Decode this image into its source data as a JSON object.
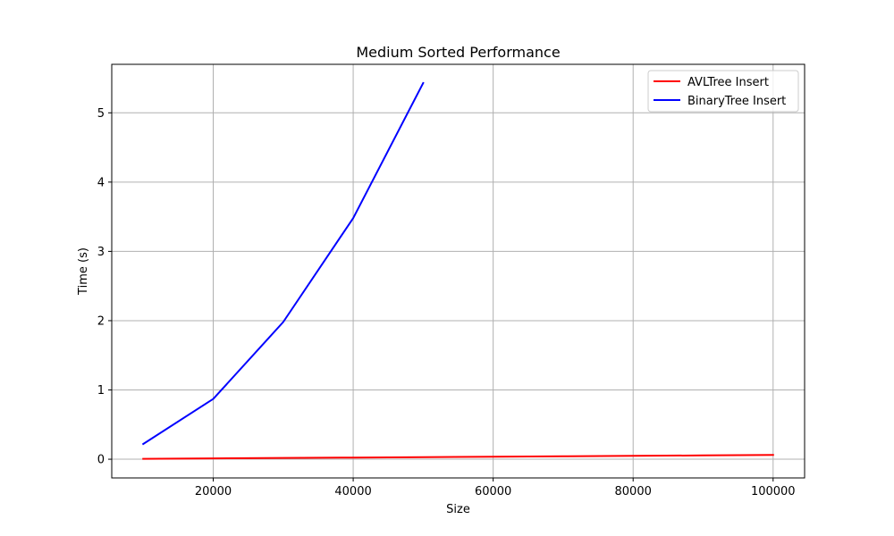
{
  "chart_data": {
    "type": "line",
    "title": "Medium Sorted Performance",
    "xlabel": "Size",
    "ylabel": "Time (s)",
    "xlim": [
      5500,
      104500
    ],
    "ylim": [
      -0.27,
      5.7
    ],
    "xticks": [
      20000,
      40000,
      60000,
      80000,
      100000
    ],
    "yticks": [
      0,
      1,
      2,
      3,
      4,
      5
    ],
    "grid": true,
    "legend_position": "top-right",
    "series": [
      {
        "name": "AVLTree Insert",
        "color": "#ff0000",
        "x": [
          10000,
          20000,
          30000,
          40000,
          50000,
          60000,
          70000,
          80000,
          90000,
          100000
        ],
        "y": [
          0.006,
          0.012,
          0.018,
          0.024,
          0.03,
          0.036,
          0.042,
          0.049,
          0.055,
          0.062
        ]
      },
      {
        "name": "BinaryTree Insert",
        "color": "#0000ff",
        "x": [
          10000,
          20000,
          30000,
          40000,
          50000
        ],
        "y": [
          0.22,
          0.87,
          1.98,
          3.48,
          5.43
        ]
      }
    ]
  }
}
